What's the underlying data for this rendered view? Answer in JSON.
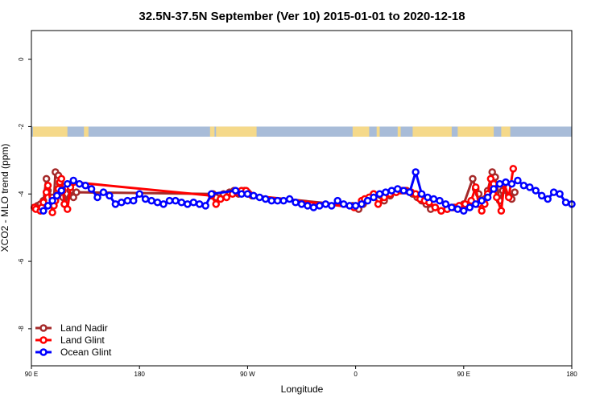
{
  "chart_data": {
    "type": "line",
    "title": "32.5N-37.5N September (Ver 10)   2015-01-01 to 2020-12-18",
    "xlabel": "Longitude",
    "ylabel": "XCO2 - MLO trend (ppm)",
    "xlim": [
      90,
      450
    ],
    "ylim": [
      -9.1,
      0.85
    ],
    "x_ticks": [
      {
        "value": 90,
        "label": "90 E"
      },
      {
        "value": 162,
        "label": "180"
      },
      {
        "value": 234,
        "label": "90 W"
      },
      {
        "value": 306,
        "label": "0"
      },
      {
        "value": 378,
        "label": "90 E"
      },
      {
        "value": 450,
        "label": "180"
      }
    ],
    "y_ticks": [
      0,
      -2,
      -4,
      -6,
      -8
    ],
    "land_band": {
      "y_top": -2.0,
      "y_bottom": -2.3,
      "ocean_color": "#a8bcd8",
      "land_color": "#f5d98a",
      "land_segments": [
        [
          91,
          114
        ],
        [
          125,
          128
        ],
        [
          209,
          212
        ],
        [
          213,
          240
        ],
        [
          304,
          315
        ],
        [
          320,
          322
        ],
        [
          334,
          336
        ],
        [
          344,
          370
        ],
        [
          374,
          398
        ],
        [
          403,
          409
        ]
      ]
    },
    "legend": {
      "position": "bottom-left",
      "entries": [
        "Land Nadir",
        "Land Glint",
        "Ocean Glint"
      ]
    },
    "series": [
      {
        "name": "Land Nadir",
        "color": "#a52a2a",
        "x": [
          92,
          94,
          96,
          97,
          98,
          100,
          101,
          104,
          105,
          106,
          108,
          109,
          110,
          111,
          112,
          116,
          118,
          120,
          211,
          212,
          213,
          218,
          222,
          225,
          228,
          232,
          234,
          237,
          304,
          308,
          311,
          315,
          318,
          325,
          329,
          333,
          337,
          340,
          344,
          347,
          350,
          353,
          356,
          359,
          363,
          367,
          372,
          378,
          384,
          386,
          388,
          390,
          392,
          394,
          397,
          399,
          402,
          404,
          408,
          410,
          412
        ],
        "y": [
          -4.4,
          -4.35,
          -4.3,
          -4.4,
          -4.2,
          -3.55,
          -3.9,
          -4.1,
          -4.2,
          -3.35,
          -3.45,
          -3.7,
          -4.0,
          -4.1,
          -4.3,
          -3.9,
          -4.1,
          -3.95,
          -4.0,
          -4.05,
          -4.1,
          -4.0,
          -3.95,
          -3.9,
          -4.0,
          -3.9,
          -3.95,
          -4.05,
          -4.35,
          -4.45,
          -4.3,
          -4.1,
          -4.0,
          -4.2,
          -4.05,
          -3.95,
          -3.9,
          -3.9,
          -4.0,
          -4.1,
          -4.2,
          -4.3,
          -4.45,
          -4.4,
          -4.5,
          -4.45,
          -4.4,
          -4.3,
          -3.55,
          -3.85,
          -4.0,
          -4.2,
          -4.15,
          -3.9,
          -3.35,
          -3.5,
          -4.2,
          -3.9,
          -4.05,
          -4.15,
          -3.95
        ]
      },
      {
        "name": "Land Glint",
        "color": "#ff0000",
        "x": [
          92,
          93,
          96,
          97,
          98,
          100,
          101,
          104,
          105,
          106,
          107,
          108,
          109,
          110,
          111,
          112,
          114,
          116,
          118,
          210,
          213,
          216,
          220,
          224,
          227,
          230,
          233,
          235,
          238,
          305,
          310,
          312,
          315,
          318,
          321,
          325,
          329,
          333,
          336,
          339,
          343,
          346,
          349,
          352,
          355,
          359,
          363,
          367,
          371,
          375,
          379,
          383,
          386,
          388,
          390,
          392,
          394,
          396,
          398,
          400,
          403,
          405,
          408,
          411
        ],
        "y": [
          -4.4,
          -4.45,
          -4.5,
          -4.4,
          -4.25,
          -3.95,
          -3.75,
          -4.55,
          -4.35,
          -4.2,
          -4.05,
          -3.85,
          -3.65,
          -3.55,
          -3.9,
          -4.3,
          -4.45,
          -3.8,
          -3.65,
          -4.05,
          -4.3,
          -4.15,
          -4.1,
          -4.0,
          -3.95,
          -3.9,
          -3.9,
          -4.0,
          -4.05,
          -4.4,
          -4.2,
          -4.15,
          -4.1,
          -4.0,
          -4.3,
          -4.1,
          -4.0,
          -3.95,
          -3.9,
          -3.9,
          -3.95,
          -4.0,
          -4.15,
          -4.2,
          -4.25,
          -4.4,
          -4.5,
          -4.45,
          -4.4,
          -4.35,
          -4.3,
          -4.2,
          -3.8,
          -4.3,
          -4.5,
          -4.3,
          -4.0,
          -3.55,
          -3.7,
          -4.1,
          -4.5,
          -3.7,
          -4.1,
          -3.25
        ]
      },
      {
        "name": "Ocean Glint",
        "color": "#0000ff",
        "x": [
          98,
          101,
          104,
          107,
          110,
          114,
          118,
          122,
          126,
          130,
          134,
          138,
          142,
          146,
          150,
          154,
          158,
          162,
          166,
          170,
          174,
          178,
          182,
          186,
          190,
          194,
          198,
          202,
          206,
          210,
          226,
          230,
          234,
          238,
          242,
          246,
          250,
          254,
          258,
          262,
          266,
          270,
          274,
          278,
          282,
          286,
          290,
          294,
          298,
          302,
          306,
          310,
          314,
          318,
          322,
          326,
          330,
          334,
          338,
          342,
          346,
          350,
          354,
          358,
          362,
          366,
          370,
          374,
          378,
          382,
          386,
          390,
          394,
          398,
          402,
          406,
          410,
          414,
          418,
          422,
          426,
          430,
          434,
          438,
          442,
          446,
          450
        ],
        "y": [
          -4.5,
          -4.35,
          -4.2,
          -4.05,
          -3.9,
          -3.7,
          -3.6,
          -3.7,
          -3.75,
          -3.85,
          -4.1,
          -3.95,
          -4.05,
          -4.3,
          -4.25,
          -4.2,
          -4.2,
          -4.0,
          -4.15,
          -4.2,
          -4.25,
          -4.3,
          -4.2,
          -4.2,
          -4.25,
          -4.3,
          -4.25,
          -4.3,
          -4.35,
          -4.0,
          -3.9,
          -4.0,
          -4.0,
          -4.05,
          -4.1,
          -4.15,
          -4.2,
          -4.2,
          -4.2,
          -4.15,
          -4.25,
          -4.3,
          -4.35,
          -4.4,
          -4.35,
          -4.3,
          -4.35,
          -4.2,
          -4.3,
          -4.35,
          -4.35,
          -4.3,
          -4.2,
          -4.1,
          -4.0,
          -3.95,
          -3.9,
          -3.85,
          -3.9,
          -3.95,
          -3.35,
          -4.0,
          -4.1,
          -4.15,
          -4.2,
          -4.3,
          -4.4,
          -4.45,
          -4.5,
          -4.4,
          -4.3,
          -4.2,
          -4.1,
          -3.85,
          -3.7,
          -3.65,
          -3.7,
          -3.6,
          -3.75,
          -3.8,
          -3.9,
          -4.05,
          -4.15,
          -3.95,
          -4.0,
          -4.25,
          -4.3
        ]
      }
    ]
  }
}
